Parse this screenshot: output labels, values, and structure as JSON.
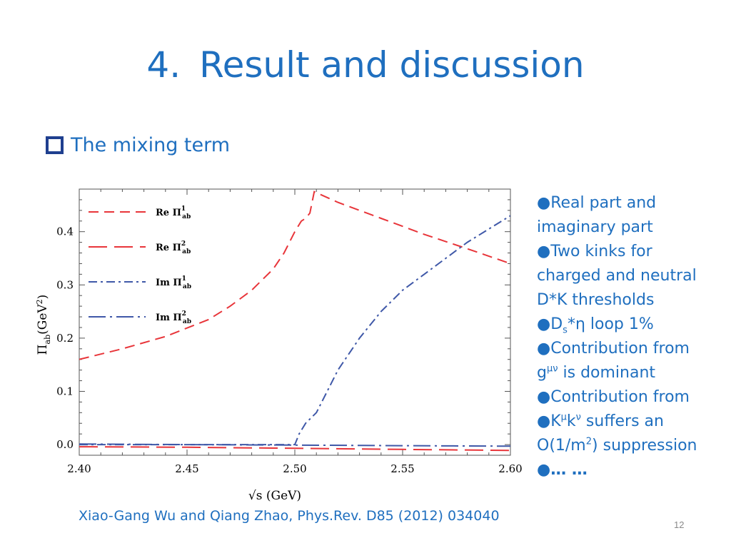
{
  "slide": {
    "number": "4.",
    "title": "Result and discussion",
    "subheading": "The mixing term",
    "bullets": {
      "b1_line1": "Real part and",
      "b1_line2": "imaginary part",
      "b2_line1": "Two kinks for",
      "b2_line2": "charged and neutral",
      "b2_line3": "D*K thresholds",
      "b3_D": "D",
      "b3_sub": "s",
      "b3_rest": "*η  loop  1%",
      "b4_line1": "Contribution from",
      "b4_g": "g",
      "b4_sup": "μν",
      "b4_rest": " is dominant",
      "b5_line1": "Contribution from",
      "b6_K": "K",
      "b6_sup1": "μ",
      "b6_k": "k",
      "b6_sup2": "ν",
      "b6_rest": " suffers an",
      "b6_l2a": "O(1/m",
      "b6_sup3": "2",
      "b6_l2b": ") suppression",
      "b7": "… …"
    },
    "bullet_glyph": "●",
    "citation": "Xiao-Gang Wu and Qiang Zhao, Phys.Rev. D85 (2012) 034040",
    "page_number": "12"
  },
  "colors": {
    "accent": "#1F6FBF",
    "checkbox": "#1F3F8F",
    "red_series": "#E8353A",
    "blue_series": "#3F58A8"
  },
  "chart_data": {
    "type": "line",
    "xlabel": "√s (GeV)",
    "ylabel_main": "Π",
    "ylabel_sub": "ab",
    "ylabel_unit": "(GeV",
    "ylabel_sup": "2",
    "ylabel_close": ")",
    "xlim": [
      2.4,
      2.6
    ],
    "ylim": [
      -0.02,
      0.48
    ],
    "x_ticks": [
      "2.40",
      "2.45",
      "2.50",
      "2.55",
      "2.60"
    ],
    "y_ticks": [
      "0.0",
      "0.1",
      "0.2",
      "0.3",
      "0.4"
    ],
    "legend_position": "top-left",
    "series": [
      {
        "name": "Re Π",
        "sup": "1",
        "sub": "ab",
        "color": "#E8353A",
        "dash": "medium",
        "x": [
          2.4,
          2.42,
          2.44,
          2.46,
          2.47,
          2.48,
          2.49,
          2.495,
          2.5,
          2.503,
          2.505,
          2.507,
          2.509,
          2.52,
          2.54,
          2.56,
          2.58,
          2.6
        ],
        "y": [
          0.16,
          0.18,
          0.203,
          0.235,
          0.26,
          0.29,
          0.33,
          0.36,
          0.4,
          0.42,
          0.425,
          0.435,
          0.475,
          0.455,
          0.425,
          0.395,
          0.368,
          0.34
        ]
      },
      {
        "name": "Re Π",
        "sup": "2",
        "sub": "ab",
        "color": "#E8353A",
        "dash": "long",
        "x": [
          2.4,
          2.45,
          2.5,
          2.55,
          2.6
        ],
        "y": [
          -0.004,
          -0.005,
          -0.007,
          -0.009,
          -0.011
        ]
      },
      {
        "name": "Im Π",
        "sup": "1",
        "sub": "ab",
        "color": "#3F58A8",
        "dash": "dashdot",
        "x": [
          2.4,
          2.45,
          2.5,
          2.502,
          2.505,
          2.51,
          2.515,
          2.52,
          2.53,
          2.54,
          2.55,
          2.56,
          2.57,
          2.58,
          2.59,
          2.6
        ],
        "y": [
          0.0,
          0.0,
          0.0,
          0.02,
          0.04,
          0.06,
          0.1,
          0.14,
          0.2,
          0.25,
          0.29,
          0.32,
          0.35,
          0.38,
          0.405,
          0.43
        ]
      },
      {
        "name": "Im Π",
        "sup": "2",
        "sub": "ab",
        "color": "#3F58A8",
        "dash": "longdashdot",
        "x": [
          2.4,
          2.45,
          2.5,
          2.55,
          2.6
        ],
        "y": [
          0.001,
          0.0,
          -0.001,
          -0.002,
          -0.003
        ]
      }
    ]
  }
}
